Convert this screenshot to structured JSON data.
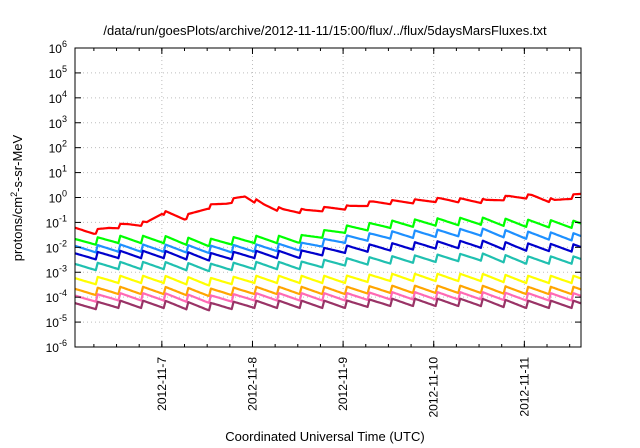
{
  "chart_data": {
    "type": "line",
    "title": "/data/run/goesPlots/archive/2012-11-11/15:00/flux/../flux/5daysMarsFluxes.txt",
    "xlabel": "Coordinated Universal Time (UTC)",
    "ylabel": {
      "pre": "protons/cm",
      "sup": "2",
      "post": "-s-sr-MeV"
    },
    "yscale": "log",
    "ylim": [
      1e-06,
      1000000.0
    ],
    "xlim": [
      "2012-11-06 01:00",
      "2012-11-11 15:00"
    ],
    "grid": true,
    "legend": "none",
    "yticks": [
      {
        "value": 1e-06,
        "exp": "-6"
      },
      {
        "value": 1e-05,
        "exp": "-5"
      },
      {
        "value": 0.0001,
        "exp": "-4"
      },
      {
        "value": 0.001,
        "exp": "-3"
      },
      {
        "value": 0.01,
        "exp": "-2"
      },
      {
        "value": 0.1,
        "exp": "-1"
      },
      {
        "value": 1.0,
        "exp": "0"
      },
      {
        "value": 10.0,
        "exp": "1"
      },
      {
        "value": 100.0,
        "exp": "2"
      },
      {
        "value": 1000.0,
        "exp": "3"
      },
      {
        "value": 10000.0,
        "exp": "4"
      },
      {
        "value": 100000.0,
        "exp": "5"
      },
      {
        "value": 1000000.0,
        "exp": "6"
      }
    ],
    "xticks": [
      "2012-11-7",
      "2012-11-8",
      "2012-11-9",
      "2012-11-10",
      "2012-11-11"
    ],
    "series": [
      {
        "color": "#ff0000",
        "x": [
          "2012-11-06 01:00",
          "2012-11-06 06:00",
          "2012-11-06 10:00",
          "2012-11-06 15:00",
          "2012-11-06 20:00",
          "2012-11-07 00:00",
          "2012-11-07 06:00",
          "2012-11-07 12:00",
          "2012-11-07 17:00",
          "2012-11-07 22:00",
          "2012-11-08 03:00",
          "2012-11-08 08:00",
          "2012-11-08 14:00",
          "2012-11-08 20:00",
          "2012-11-09 02:00",
          "2012-11-09 08:00",
          "2012-11-09 14:00",
          "2012-11-09 20:00",
          "2012-11-10 02:00",
          "2012-11-10 08:00",
          "2012-11-10 14:00",
          "2012-11-10 20:00",
          "2012-11-11 02:00",
          "2012-11-11 08:00",
          "2012-11-11 15:00"
        ],
        "y": [
          0.05,
          0.04,
          0.06,
          0.08,
          0.09,
          0.25,
          0.15,
          0.4,
          0.6,
          1.1,
          0.5,
          0.3,
          0.28,
          0.35,
          0.4,
          0.6,
          0.65,
          0.7,
          0.8,
          0.75,
          0.7,
          1.0,
          1.1,
          0.7,
          1.3
        ]
      },
      {
        "color": "#00ff00",
        "x": [
          "2012-11-06 01:00",
          "2012-11-06 12:00",
          "2012-11-07 00:00",
          "2012-11-07 12:00",
          "2012-11-08 00:00",
          "2012-11-08 12:00",
          "2012-11-09 00:00",
          "2012-11-09 12:00",
          "2012-11-10 00:00",
          "2012-11-10 12:00",
          "2012-11-11 00:00",
          "2012-11-11 15:00"
        ],
        "y": [
          0.015,
          0.02,
          0.02,
          0.015,
          0.02,
          0.02,
          0.05,
          0.08,
          0.1,
          0.11,
          0.09,
          0.08
        ]
      },
      {
        "color": "#1e90ff",
        "x": [
          "2012-11-06 01:00",
          "2012-11-06 12:00",
          "2012-11-07 00:00",
          "2012-11-07 12:00",
          "2012-11-08 00:00",
          "2012-11-08 12:00",
          "2012-11-09 00:00",
          "2012-11-09 12:00",
          "2012-11-10 00:00",
          "2012-11-10 12:00",
          "2012-11-11 00:00",
          "2012-11-11 15:00"
        ],
        "y": [
          0.008,
          0.009,
          0.009,
          0.008,
          0.009,
          0.01,
          0.02,
          0.03,
          0.035,
          0.04,
          0.03,
          0.025
        ]
      },
      {
        "color": "#0000cc",
        "x": [
          "2012-11-06 01:00",
          "2012-11-06 12:00",
          "2012-11-07 00:00",
          "2012-11-07 12:00",
          "2012-11-08 00:00",
          "2012-11-08 12:00",
          "2012-11-09 00:00",
          "2012-11-09 12:00",
          "2012-11-10 00:00",
          "2012-11-10 12:00",
          "2012-11-11 00:00",
          "2012-11-11 15:00"
        ],
        "y": [
          0.004,
          0.005,
          0.005,
          0.004,
          0.005,
          0.005,
          0.008,
          0.01,
          0.012,
          0.013,
          0.01,
          0.009
        ]
      },
      {
        "color": "#20c0b0",
        "x": [
          "2012-11-06 01:00",
          "2012-11-06 12:00",
          "2012-11-07 00:00",
          "2012-11-07 12:00",
          "2012-11-08 00:00",
          "2012-11-08 12:00",
          "2012-11-09 00:00",
          "2012-11-09 12:00",
          "2012-11-10 00:00",
          "2012-11-10 12:00",
          "2012-11-11 00:00",
          "2012-11-11 15:00"
        ],
        "y": [
          0.0015,
          0.0018,
          0.0018,
          0.0015,
          0.0018,
          0.0018,
          0.0025,
          0.003,
          0.0035,
          0.004,
          0.003,
          0.003
        ]
      },
      {
        "color": "#ffff00",
        "x": [
          "2012-11-06 01:00",
          "2012-11-06 12:00",
          "2012-11-07 00:00",
          "2012-11-07 12:00",
          "2012-11-08 00:00",
          "2012-11-08 12:00",
          "2012-11-09 00:00",
          "2012-11-09 12:00",
          "2012-11-10 00:00",
          "2012-11-10 12:00",
          "2012-11-11 00:00",
          "2012-11-11 15:00"
        ],
        "y": [
          0.0004,
          0.0005,
          0.0005,
          0.0004,
          0.0005,
          0.0005,
          0.0005,
          0.0006,
          0.0006,
          0.0006,
          0.0005,
          0.0005
        ]
      },
      {
        "color": "#ffa500",
        "x": [
          "2012-11-06 01:00",
          "2012-11-06 12:00",
          "2012-11-07 00:00",
          "2012-11-07 12:00",
          "2012-11-08 00:00",
          "2012-11-08 12:00",
          "2012-11-09 00:00",
          "2012-11-09 12:00",
          "2012-11-10 00:00",
          "2012-11-10 12:00",
          "2012-11-11 00:00",
          "2012-11-11 15:00"
        ],
        "y": [
          0.00015,
          0.00018,
          0.00018,
          0.00015,
          0.00018,
          0.00018,
          0.00018,
          0.0002,
          0.0002,
          0.0002,
          0.00018,
          0.00018
        ]
      },
      {
        "color": "#ff69b4",
        "x": [
          "2012-11-06 01:00",
          "2012-11-06 12:00",
          "2012-11-07 00:00",
          "2012-11-07 12:00",
          "2012-11-08 00:00",
          "2012-11-08 12:00",
          "2012-11-09 00:00",
          "2012-11-09 12:00",
          "2012-11-10 00:00",
          "2012-11-10 12:00",
          "2012-11-11 00:00",
          "2012-11-11 15:00"
        ],
        "y": [
          8e-05,
          0.0001,
          0.0001,
          8e-05,
          0.0001,
          0.0001,
          0.0001,
          0.00011,
          0.00011,
          0.00011,
          0.0001,
          0.0001
        ]
      },
      {
        "color": "#993366",
        "x": [
          "2012-11-06 01:00",
          "2012-11-06 12:00",
          "2012-11-07 00:00",
          "2012-11-07 12:00",
          "2012-11-08 00:00",
          "2012-11-08 12:00",
          "2012-11-09 00:00",
          "2012-11-09 12:00",
          "2012-11-10 00:00",
          "2012-11-10 12:00",
          "2012-11-11 00:00",
          "2012-11-11 15:00"
        ],
        "y": [
          4e-05,
          5e-05,
          5e-05,
          4e-05,
          5e-05,
          5e-05,
          5e-05,
          6e-05,
          6e-05,
          6e-05,
          5e-05,
          5e-05
        ]
      }
    ]
  }
}
